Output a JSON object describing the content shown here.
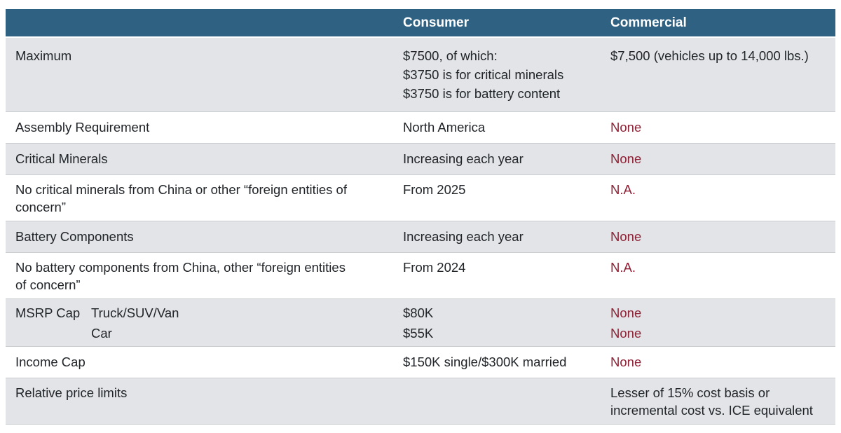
{
  "colors": {
    "header_bg": "#2F6183",
    "header_text": "#FFFFFF",
    "stripe_bg": "#E2E4E7",
    "row_bg": "#FFFFFF",
    "body_text": "#212529",
    "negative_text": "#8E2135",
    "divider": "#C9CDD0"
  },
  "table": {
    "header": {
      "col1": "",
      "col2": "Consumer",
      "col3": "Commercial"
    },
    "rows": [
      {
        "label": "Maximum",
        "consumer_l1": "$7500, of which:",
        "consumer_l2": "$3750 is for critical minerals",
        "consumer_l3": "$3750 is for battery content",
        "commercial": "$7,500 (vehicles up to 14,000 lbs.)"
      },
      {
        "label": "Assembly Requirement",
        "consumer": "North America",
        "commercial": "None"
      },
      {
        "label": "Critical Minerals",
        "consumer": "Increasing each year",
        "commercial": "None"
      },
      {
        "label_l1": "No critical minerals from China or other “foreign entities of",
        "label_l2": "concern”",
        "consumer": "From 2025",
        "commercial": "N.A."
      },
      {
        "label": "Battery Components",
        "consumer": "Increasing each year",
        "commercial": "None"
      },
      {
        "label_l1": "No battery components from China, other “foreign entities",
        "label_l2": "of concern”",
        "consumer": "From 2024",
        "commercial": "N.A."
      },
      {
        "label": "MSRP Cap",
        "sublabel_l1": "Truck/SUV/Van",
        "sublabel_l2": "Car",
        "consumer_l1": "$80K",
        "consumer_l2": "$55K",
        "commercial_l1": "None",
        "commercial_l2": "None"
      },
      {
        "label": "Income Cap",
        "consumer": "$150K single/$300K married",
        "commercial": "None"
      },
      {
        "label": "Relative price limits",
        "consumer": "",
        "commercial_l1": "Lesser of 15% cost basis or",
        "commercial_l2": "incremental cost vs. ICE equivalent"
      }
    ]
  },
  "chart_data": {
    "type": "table",
    "columns": [
      "",
      "Consumer",
      "Commercial"
    ],
    "rows": [
      [
        "Maximum",
        "$7500, of which:\n$3750 is for critical minerals\n$3750 is for battery content",
        "$7,500 (vehicles up to 14,000 lbs.)"
      ],
      [
        "Assembly Requirement",
        "North America",
        "None"
      ],
      [
        "Critical Minerals",
        "Increasing each year",
        "None"
      ],
      [
        "No critical minerals from China or other “foreign entities of concern”",
        "From 2025",
        "N.A."
      ],
      [
        "Battery Components",
        "Increasing each year",
        "None"
      ],
      [
        "No battery components from China, other “foreign entities of concern”",
        "From 2024",
        "N.A."
      ],
      [
        "MSRP Cap (Truck/SUV/Van)",
        "$80K",
        "None"
      ],
      [
        "MSRP Cap (Car)",
        "$55K",
        "None"
      ],
      [
        "Income Cap",
        "$150K single/$300K married",
        "None"
      ],
      [
        "Relative price limits",
        "",
        "Lesser of 15% cost basis or incremental cost vs. ICE equivalent"
      ]
    ],
    "layout": {
      "striped_rows": true,
      "negative_values_color": "#8E2135",
      "header_style": "dark-blue bar, white bold text"
    }
  }
}
